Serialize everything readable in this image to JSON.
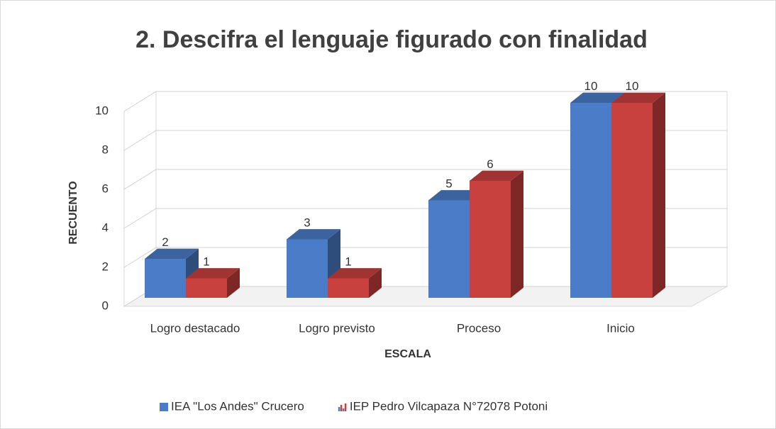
{
  "chart_data": {
    "type": "bar3d",
    "title": "2. Descifra el lenguaje figurado con finalidad",
    "x_label": "ESCALA",
    "y_label": "RECUENTO",
    "categories": [
      "Logro destacado",
      "Logro previsto",
      "Proceso",
      "Inicio"
    ],
    "series": [
      {
        "name": "IEA \"Los Andes\" Crucero",
        "color": "#4a7cc7",
        "values": [
          2,
          3,
          5,
          10
        ]
      },
      {
        "name": "IEP Pedro Vilcapaza N°72078 Potoni",
        "color": "#c9413e",
        "values": [
          1,
          1,
          6,
          10
        ]
      }
    ],
    "ylim": [
      0,
      10
    ],
    "yticks": [
      0,
      2,
      4,
      6,
      8,
      10
    ],
    "grid": true,
    "legend": "bottom"
  }
}
